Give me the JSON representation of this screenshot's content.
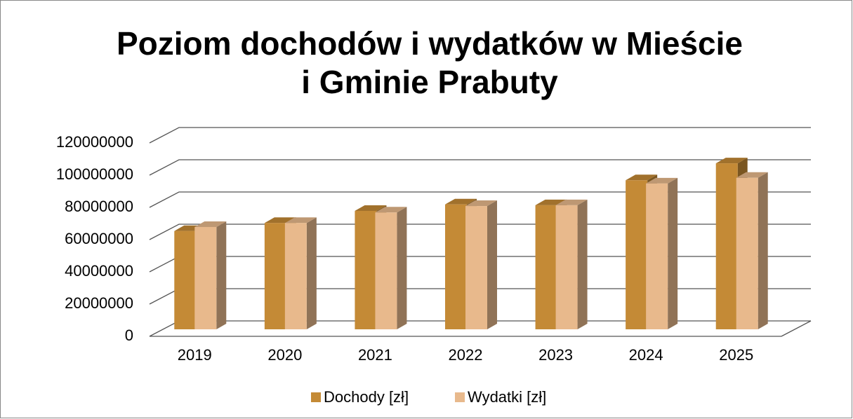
{
  "chart_data": {
    "type": "bar3d",
    "title": [
      "Poziom dochodów i wydatków  w Mieście",
      "i Gminie Prabuty"
    ],
    "categories": [
      "2019",
      "2020",
      "2021",
      "2022",
      "2023",
      "2024",
      "2025"
    ],
    "series": [
      {
        "name": "Dochody [zł]",
        "color": "#c48a36",
        "values": [
          61000000,
          66000000,
          73500000,
          77500000,
          77000000,
          92500000,
          103000000
        ]
      },
      {
        "name": "Wydatki [zł]",
        "color": "#e8b98c",
        "values": [
          63500000,
          66000000,
          72500000,
          76500000,
          77000000,
          90500000,
          94000000
        ]
      }
    ],
    "ylim": [
      0,
      120000000
    ],
    "yticks": [
      0,
      20000000,
      40000000,
      60000000,
      80000000,
      100000000,
      120000000
    ],
    "grid": true,
    "legend": "bottom"
  }
}
